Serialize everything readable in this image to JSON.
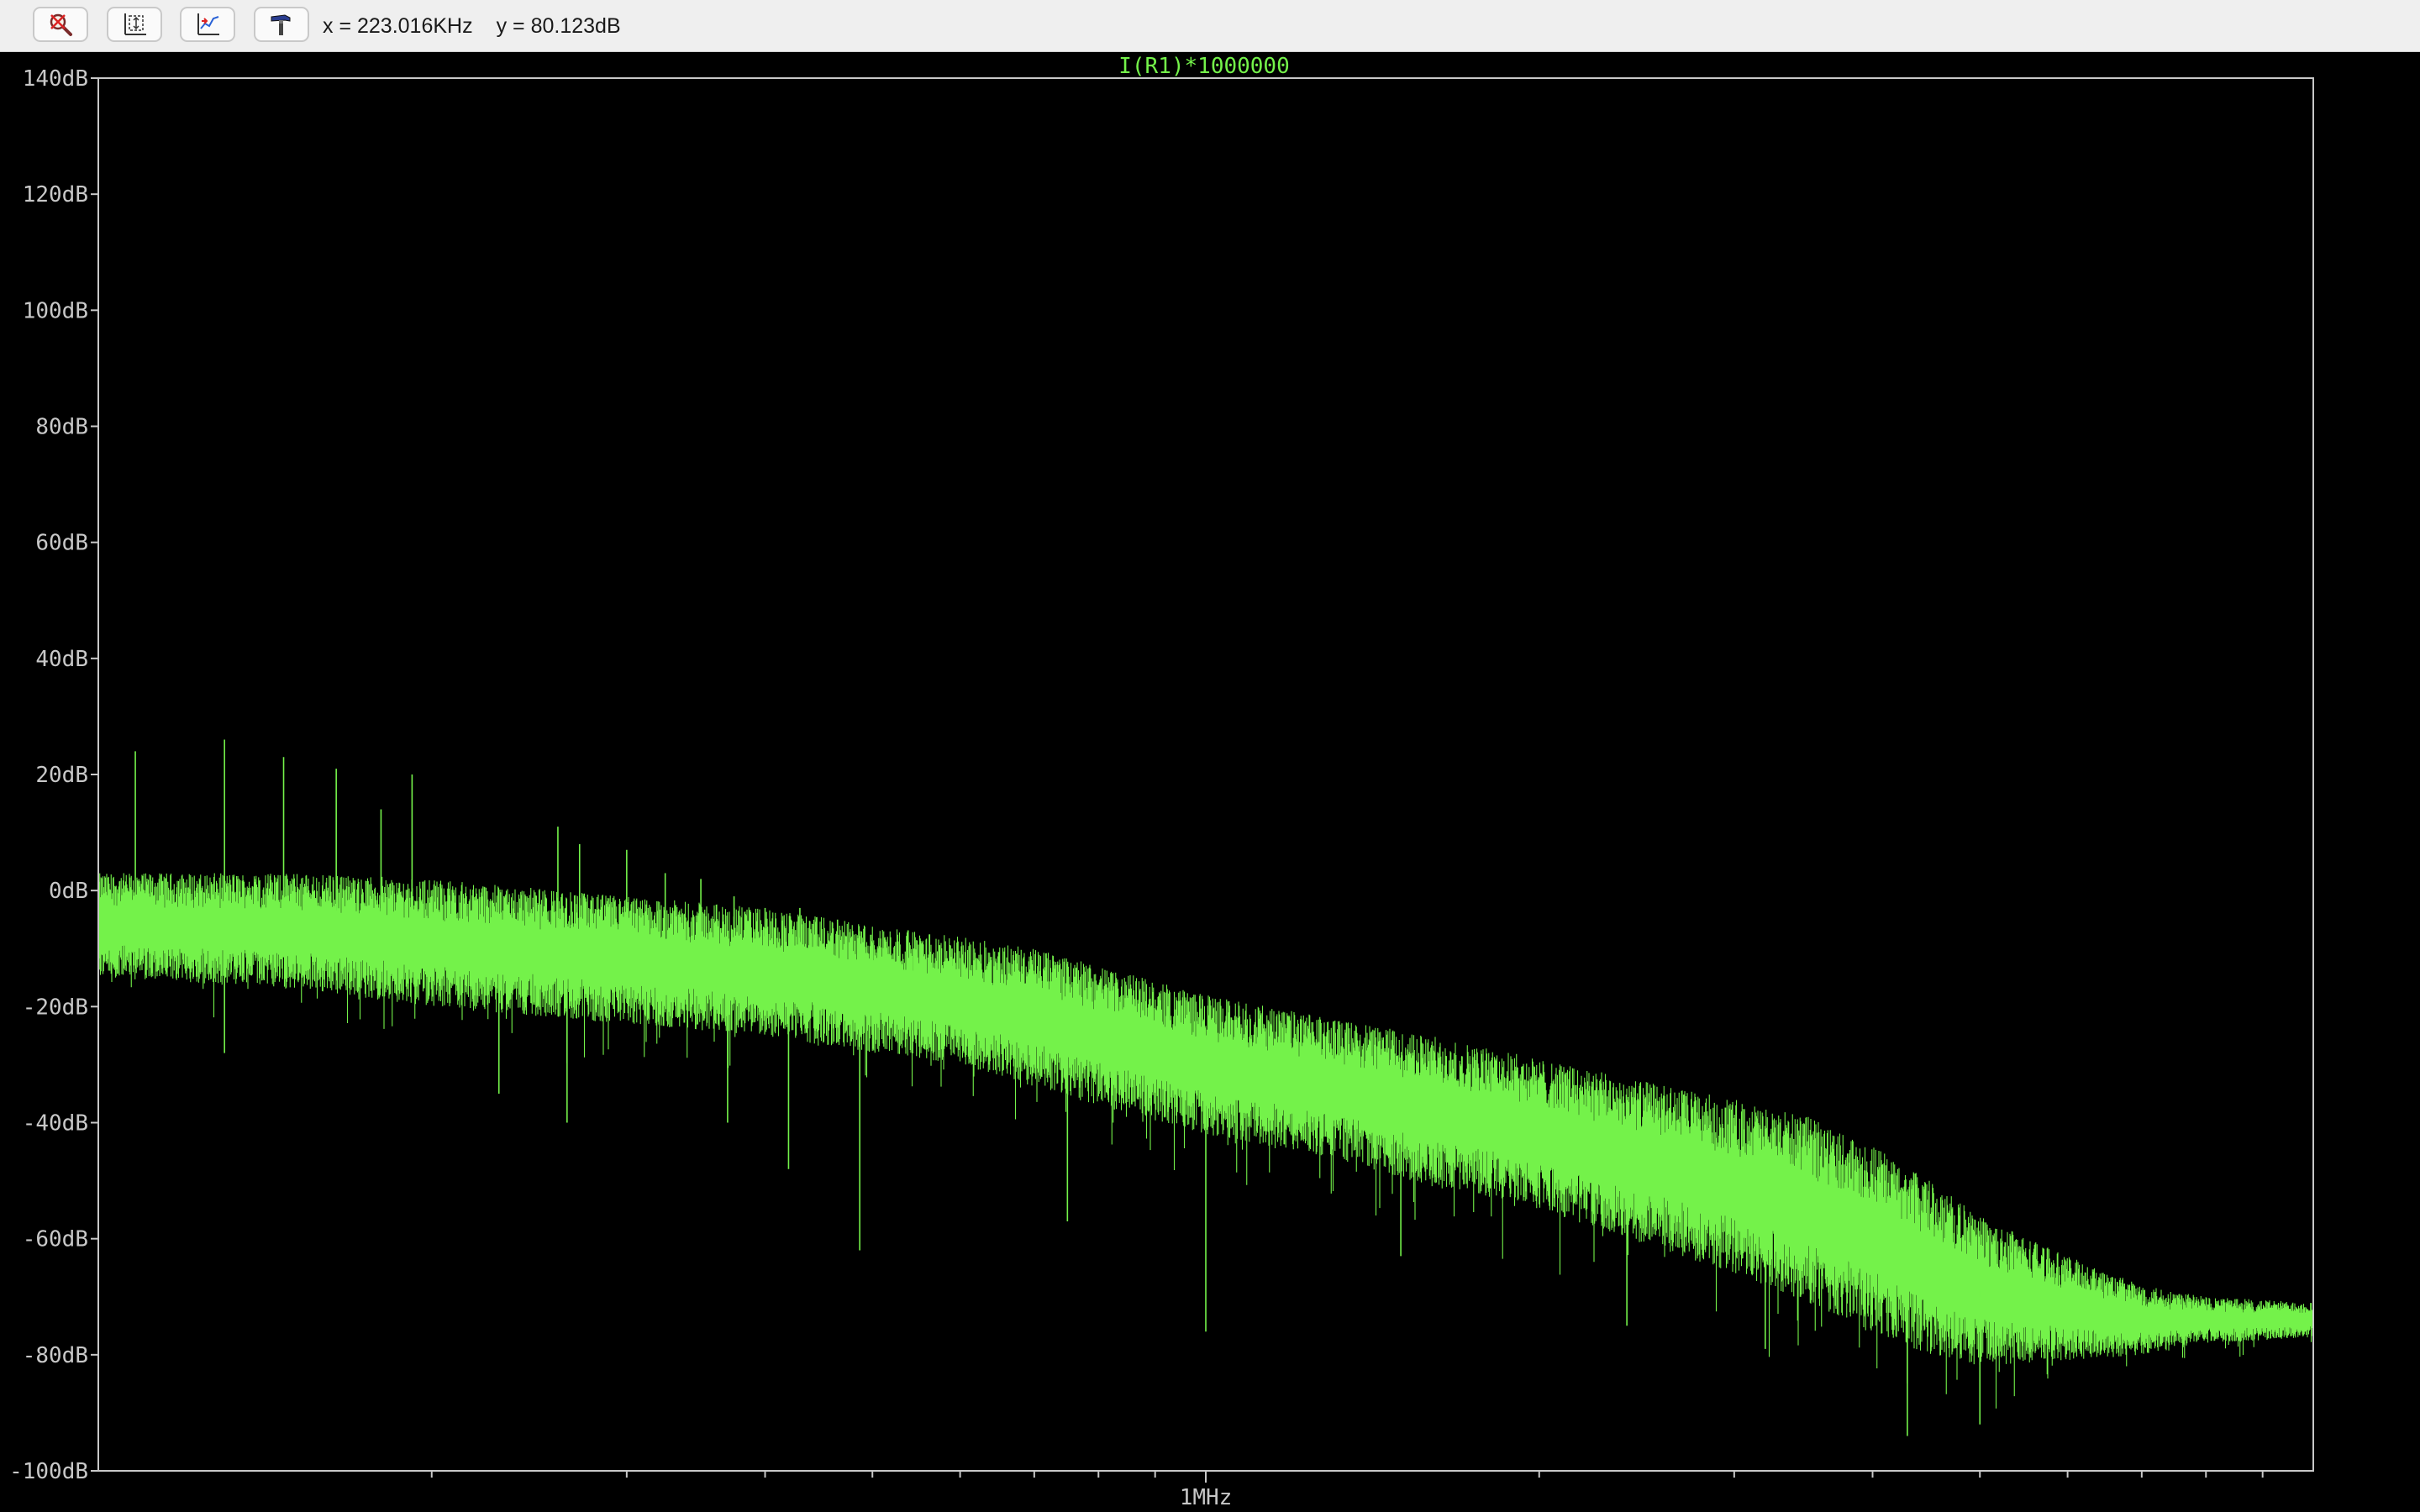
{
  "toolbar": {
    "buttons": [
      {
        "name": "zoom-icon"
      },
      {
        "name": "autorange-icon"
      },
      {
        "name": "scale-icon"
      },
      {
        "name": "hammer-icon"
      }
    ],
    "cursor_x": "x = 223.016KHz",
    "cursor_y": "y = 80.123dB"
  },
  "colors": {
    "trace": "#74f24a",
    "axis": "#c8c8c8",
    "background": "#000000",
    "title": "#74f24a"
  },
  "chart_data": {
    "type": "line",
    "title": "I(R1)*1000000",
    "xscale": "log",
    "xlim": [
      100000,
      10000000
    ],
    "ylim": [
      -100,
      140
    ],
    "xlabel": "",
    "ylabel": "",
    "x_tick_labels": [
      {
        "value": 1000000,
        "label": "1MHz"
      }
    ],
    "y_ticks": [
      {
        "value": 140,
        "label": "140dB"
      },
      {
        "value": 120,
        "label": "120dB"
      },
      {
        "value": 100,
        "label": "100dB"
      },
      {
        "value": 80,
        "label": "80dB"
      },
      {
        "value": 60,
        "label": "60dB"
      },
      {
        "value": 40,
        "label": "40dB"
      },
      {
        "value": 20,
        "label": "20dB"
      },
      {
        "value": 0,
        "label": "0dB"
      },
      {
        "value": -20,
        "label": "-20dB"
      },
      {
        "value": -40,
        "label": "-40dB"
      },
      {
        "value": -60,
        "label": "-60dB"
      },
      {
        "value": -80,
        "label": "-80dB"
      },
      {
        "value": -100,
        "label": "-100dB"
      }
    ],
    "grid": false,
    "series": [
      {
        "envelope_x": [
          100000,
          150000,
          200000,
          300000,
          400000,
          500000,
          600000,
          700000,
          800000,
          1000000,
          1300000,
          1600000,
          2000000,
          2500000,
          3000000,
          3500000,
          4000000,
          4500000,
          5000000,
          6000000,
          7000000,
          8000000,
          10000000
        ],
        "envelope_center": [
          -6,
          -7,
          -9,
          -12,
          -14,
          -17,
          -19,
          -22,
          -25,
          -30,
          -34,
          -38,
          -42,
          -47,
          -51,
          -55,
          -60,
          -65,
          -69,
          -72,
          -74,
          -74,
          -74
        ],
        "envelope_spread": [
          9,
          10,
          11,
          11,
          11,
          11,
          11,
          12,
          12,
          12,
          12,
          13,
          13,
          14,
          15,
          16,
          16,
          15,
          13,
          9,
          6,
          4,
          3
        ],
        "spikes": [
          {
            "x": 108000,
            "y": 24
          },
          {
            "x": 130000,
            "y": 26
          },
          {
            "x": 147000,
            "y": 23
          },
          {
            "x": 164000,
            "y": 21
          },
          {
            "x": 180000,
            "y": 14
          },
          {
            "x": 192000,
            "y": 20
          },
          {
            "x": 260000,
            "y": 11
          },
          {
            "x": 272000,
            "y": 8
          },
          {
            "x": 300000,
            "y": 7
          },
          {
            "x": 325000,
            "y": 3
          },
          {
            "x": 350000,
            "y": 2
          },
          {
            "x": 375000,
            "y": -1
          },
          {
            "x": 400000,
            "y": -3
          },
          {
            "x": 430000,
            "y": -3
          },
          {
            "x": 465000,
            "y": -5
          },
          {
            "x": 500000,
            "y": -9
          },
          {
            "x": 545000,
            "y": -10
          },
          {
            "x": 590000,
            "y": -10
          },
          {
            "x": 640000,
            "y": -12
          },
          {
            "x": 700000,
            "y": -15
          },
          {
            "x": 760000,
            "y": -18
          },
          {
            "x": 830000,
            "y": -20
          },
          {
            "x": 900000,
            "y": -24
          },
          {
            "x": 980000,
            "y": -27
          },
          {
            "x": 1070000,
            "y": -29
          },
          {
            "x": 1170000,
            "y": -31
          },
          {
            "x": 1280000,
            "y": -33
          },
          {
            "x": 1400000,
            "y": -36
          },
          {
            "x": 1530000,
            "y": -39
          },
          {
            "x": 1680000,
            "y": -41
          },
          {
            "x": 1840000,
            "y": -43
          },
          {
            "x": 2020000,
            "y": -46
          },
          {
            "x": 2210000,
            "y": -49
          },
          {
            "x": 2420000,
            "y": -51
          },
          {
            "x": 2650000,
            "y": -54
          },
          {
            "x": 2900000,
            "y": -57
          },
          {
            "x": 3180000,
            "y": -60
          },
          {
            "x": 3480000,
            "y": -62
          },
          {
            "x": 3810000,
            "y": -64
          },
          {
            "x": 4170000,
            "y": -66
          },
          {
            "x": 4570000,
            "y": -68
          },
          {
            "x": 5000000,
            "y": -70
          },
          {
            "x": 5480000,
            "y": -71
          },
          {
            "x": 6000000,
            "y": -72
          },
          {
            "x": 6570000,
            "y": -73
          },
          {
            "x": 7200000,
            "y": -74
          }
        ],
        "dips": [
          {
            "x": 130000,
            "y": -28
          },
          {
            "x": 230000,
            "y": -35
          },
          {
            "x": 265000,
            "y": -40
          },
          {
            "x": 370000,
            "y": -40
          },
          {
            "x": 420000,
            "y": -48
          },
          {
            "x": 487000,
            "y": -62
          },
          {
            "x": 750000,
            "y": -57
          },
          {
            "x": 1000000,
            "y": -76
          },
          {
            "x": 1500000,
            "y": -63
          },
          {
            "x": 2400000,
            "y": -75
          },
          {
            "x": 3200000,
            "y": -79
          },
          {
            "x": 4300000,
            "y": -94
          },
          {
            "x": 5000000,
            "y": -92
          }
        ]
      }
    ]
  }
}
